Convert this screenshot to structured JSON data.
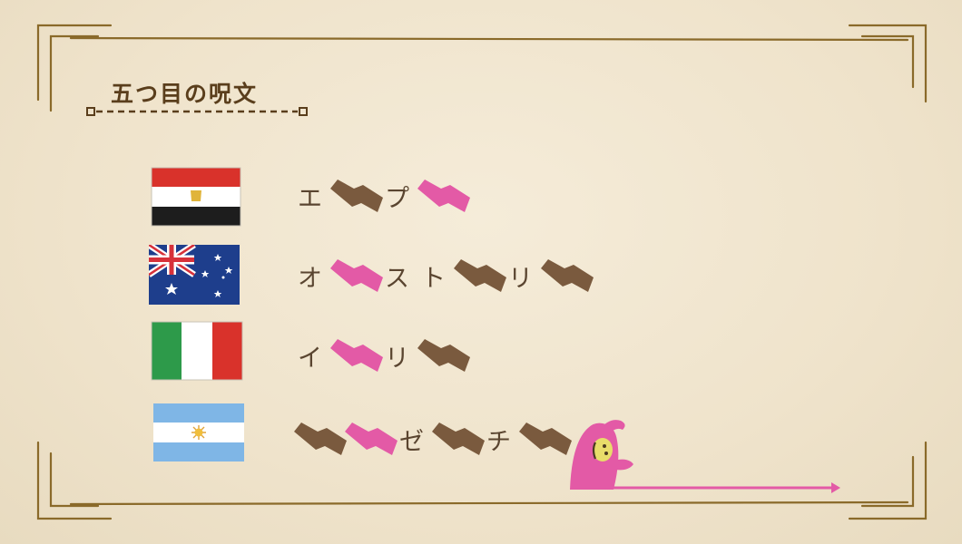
{
  "slide": {
    "title": "五つ目の呪文"
  },
  "rows": [
    {
      "country_flag": "egypt-flag-icon",
      "segments": [
        {
          "type": "char",
          "text": "エ"
        },
        {
          "type": "blot",
          "color": "#7a5a3e"
        },
        {
          "type": "char",
          "text": "プ"
        },
        {
          "type": "blot",
          "color": "#e35aa6"
        }
      ]
    },
    {
      "country_flag": "australia-flag-icon",
      "segments": [
        {
          "type": "char",
          "text": "オ"
        },
        {
          "type": "blot",
          "color": "#e35aa6"
        },
        {
          "type": "char",
          "text": "ス"
        },
        {
          "type": "char",
          "text": "ト"
        },
        {
          "type": "blot",
          "color": "#7a5a3e"
        },
        {
          "type": "char",
          "text": "リ"
        },
        {
          "type": "blot",
          "color": "#7a5a3e"
        }
      ]
    },
    {
      "country_flag": "italy-flag-icon",
      "segments": [
        {
          "type": "char",
          "text": "イ"
        },
        {
          "type": "blot",
          "color": "#e35aa6"
        },
        {
          "type": "char",
          "text": "リ"
        },
        {
          "type": "blot",
          "color": "#7a5a3e"
        }
      ]
    },
    {
      "country_flag": "argentina-flag-icon",
      "segments": [
        {
          "type": "blot",
          "color": "#7a5a3e"
        },
        {
          "type": "blot",
          "color": "#e35aa6"
        },
        {
          "type": "char",
          "text": "ゼ"
        },
        {
          "type": "blot",
          "color": "#7a5a3e"
        },
        {
          "type": "char",
          "text": "チ"
        },
        {
          "type": "blot",
          "color": "#7a5a3e"
        }
      ]
    }
  ],
  "colors": {
    "frame": "#8a6a2a",
    "title": "#5a3e1c",
    "pink": "#e35aa6",
    "brown_blot": "#7a5a3e",
    "background": "#f1e6cf"
  }
}
